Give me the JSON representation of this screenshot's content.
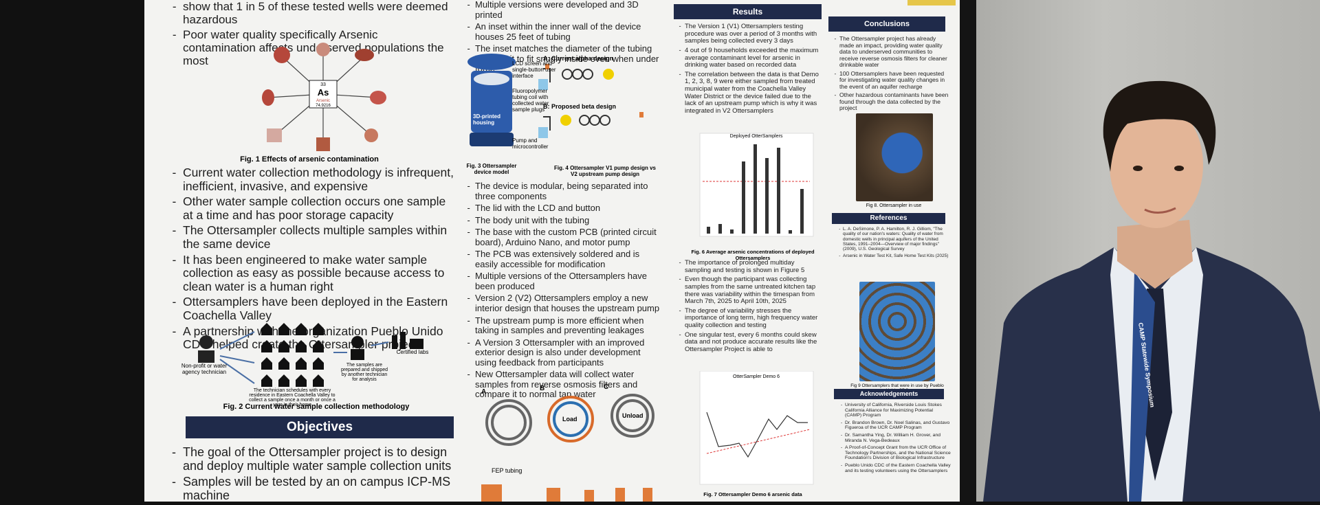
{
  "poster": {
    "col1": {
      "top_bullets": [
        "show that 1 in 5 of these tested wells were deemed hazardous",
        "Poor water quality specifically Arsenic contamination affects underserved populations the most"
      ],
      "element": {
        "number": "33",
        "symbol": "As",
        "name": "Arsenic",
        "mass": "74.9216"
      },
      "fig1_caption": "Fig. 1 Effects of arsenic contamination",
      "bullets": [
        "Current water collection methodology is infrequent, inefficient, invasive, and expensive",
        "Other water sample collection occurs one sample at a time and has poor storage capacity",
        "The Ottersampler collects multiple samples within the same device",
        "It has been engineered to make water sample collection as easy as possible because access to clean water is a human right",
        "Ottersamplers have been deployed in the Eastern Coachella Valley",
        "A partnership with the organization Pueblo Unido CDC helped create the Ottersampler project"
      ],
      "fig2_labels": [
        "Non-profit or water agency technician",
        "The technician schedules with every residence in Eastern Coachella Valley to collect a sample once a month or once a year in their home",
        "The samples are prepared and shipped by another technician for analysis",
        "Certified labs"
      ],
      "fig2_caption": "Fig. 2 Current water sample collection methodology",
      "objectives_title": "Objectives",
      "objectives": [
        "The goal of the Ottersampler project is to design and deploy multiple water sample collection units",
        "Samples will be tested by an on campus ICP-MS machine"
      ]
    },
    "col2": {
      "top_bullets": [
        "Multiple versions were developed and 3D printed",
        "An inset within the inner wall of the device houses 25 feet of tubing",
        "The inset matches the diameter of the tubing allowing it to fit snugly inside even when under force"
      ],
      "fig3_labels": [
        "LCD screen and single-button user interface",
        "Fluoropolymer tubing coil with collected water sample plugs",
        "3D-printed housing",
        "Pump and microcontroller"
      ],
      "fig3_caption": "Fig. 3 Ottersampler device model",
      "fig4_labels": [
        "A: Current alpha design",
        "B: Proposed beta design"
      ],
      "fig4_caption": "Fig. 4 Ottersampler V1 pump design vs V2 upstream pump design",
      "bullets": [
        "The device is modular, being separated into three components",
        "The lid with the LCD and button",
        "The body unit with the tubing",
        "The base with the custom PCB (printed circuit board), Arduino Nano, and motor pump",
        "The PCB was extensively soldered and is easily accessible for modification",
        "Multiple versions of the Ottersamplers have been produced",
        "Version 2 (V2) Ottersamplers employ a new interior design that houses the upstream pump",
        "The upstream pump is more efficient when taking in samples and preventing leakages",
        "A Version 3 Ottersampler with an improved exterior design is also under development using feedback from participants",
        "New Ottersampler data will collect water samples from reverse osmosis filters and compare it to normal tap water"
      ],
      "fig5_labels": [
        "A",
        "B",
        "C",
        "FEP tubing",
        "Load",
        "Unload"
      ]
    },
    "col3": {
      "results_title": "Results",
      "bullets": [
        "The Version 1 (V1) Ottersamplers testing procedure was over a period of 3 months with samples being collected every 3 days",
        "4 out of 9 households exceeded the maximum average contaminant level for arsenic in drinking water based on recorded data",
        "The correlation between the data is that Demo 1, 2, 3, 8, 9 were either sampled from treated municipal water from the Coachella Valley Water District or the device failed due to the lack of an upstream pump which is why it was integrated in V2 Ottersamplers"
      ],
      "chart1_title": "Deployed OtterSamplers",
      "fig6_caption": "Fig. 6 Average arsenic concentrations of deployed Ottersamplers",
      "bullets2": [
        "The importance of prolonged multiday sampling and testing is shown in Figure 5",
        "Even though the participant was collecting samples from the same untreated kitchen tap there was variability within the timespan from March 7th, 2025 to April 10th, 2025",
        "The degree of variability stresses the importance of long term, high frequency water quality collection and testing",
        "One singular test, every 6 months could skew data and not produce accurate results like the Ottersampler Project is able to"
      ],
      "chart2_title": "OtterSampler Demo 6",
      "fig7_caption": "Fig. 7 Ottersampler Demo 6 arsenic data"
    },
    "col4": {
      "conclusions_title": "Conclusions",
      "conclusions": [
        "The Ottersampler project has already made an impact, providing water quality data to underserved communities to receive reverse osmosis filters for cleaner drinkable water",
        "100 Ottersamplers have been requested for investigating water quality changes in the event of an aquifer recharge",
        "Other hazardous contaminants have been found through the data collected by the project"
      ],
      "fig8_caption": "Fig 8. Ottersampler in use",
      "references_title": "References",
      "references": [
        "L. A. DeSimone, P. A. Hamilton, R. J. Gilliom, \"The quality of our nation's waters: Quality of water from domestic wells in principal aquifers of the United States, 1991–2004—Overview of major findings\" (2009), U.S. Geological Survey",
        "Arsenic in Water Test Kit, Safe Home Test Kits (2025)"
      ],
      "fig9_caption": "Fig 9 Ottersamplers that were in use by Pueblo Unido CDC",
      "ack_title": "Acknowledgements",
      "ack": [
        "University of California, Riverside Louis Stokes California Alliance for Maximizing Potential (CAMP) Program",
        "Dr. Brandon Brown, Dr. Noel Salinas, and Gustavo Figueroa of the UCR CAMP Program",
        "Dr. Samantha Ying, Dr. William H. Grover, and Miranda N. Vega-Bedeaux",
        "A Proof-of-Concept Grant from the UCR Office of Technology Partnerships, and the National Science Foundation's Division of Biological Infrastructure",
        "Pueblo Unido CDC of the Eastern Coachella Valley and its testing volunteers using the Ottersamplers"
      ]
    }
  },
  "lanyard": "CAMP Statewide Symposium"
}
